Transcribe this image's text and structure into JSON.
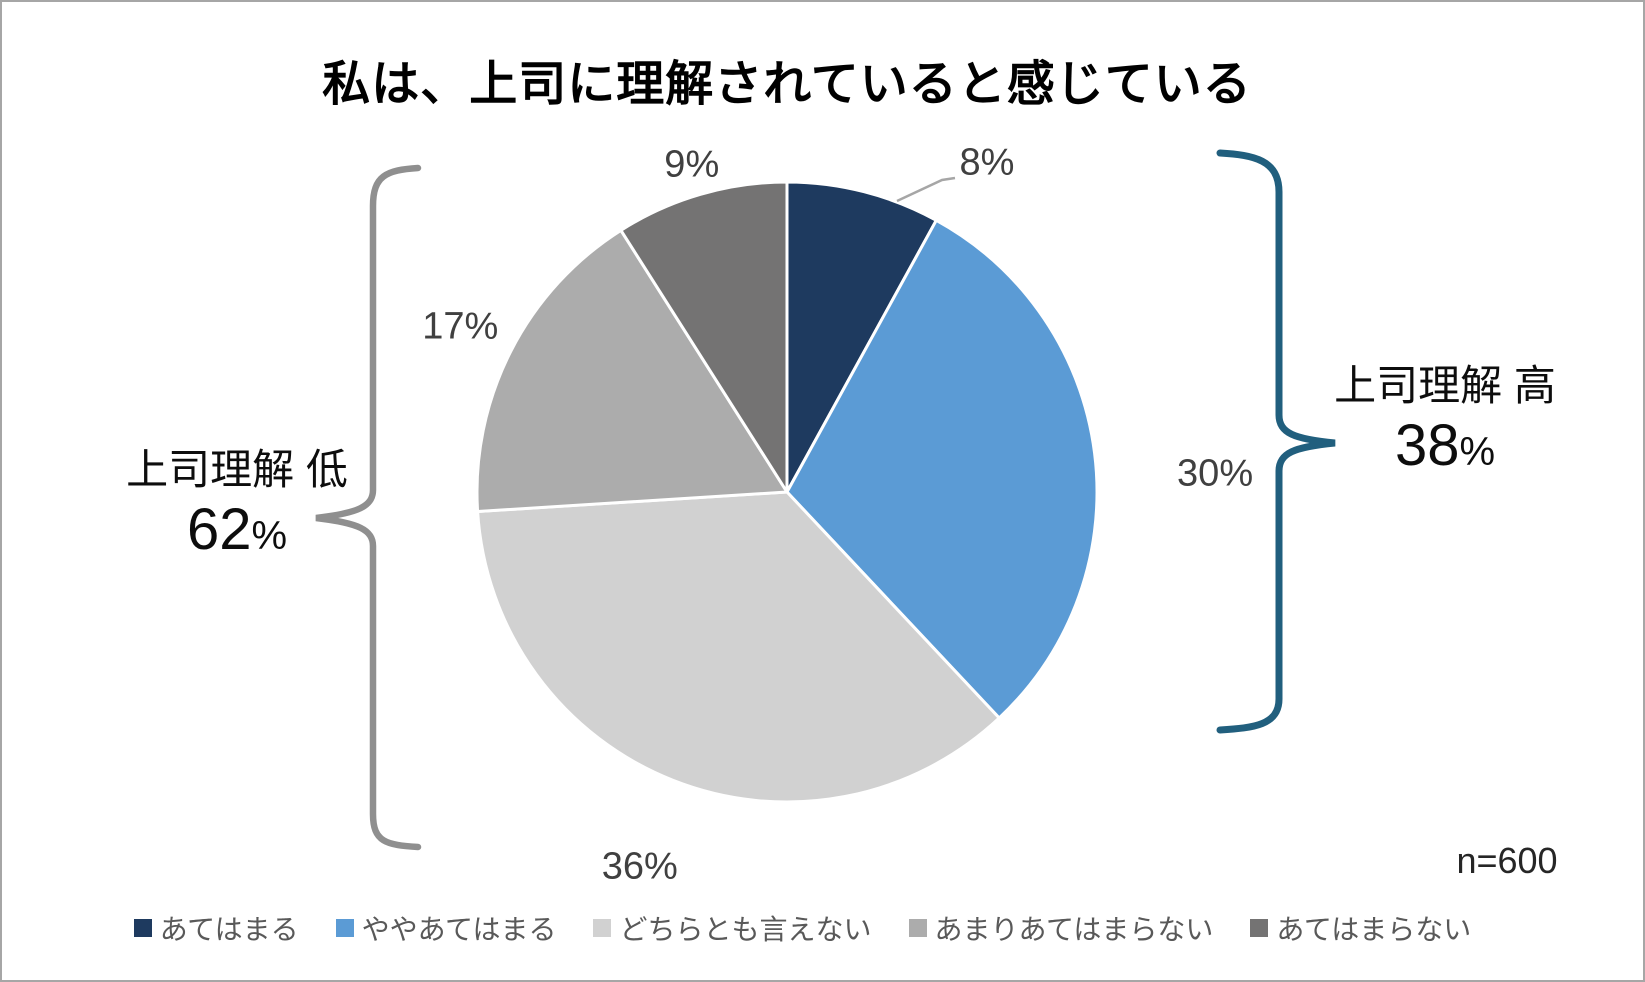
{
  "chart_data": {
    "type": "pie",
    "title": "私は、上司に理解されていると感じている",
    "categories": [
      "あてはまる",
      "ややあてはまる",
      "どちらとも言えない",
      "あまりあてはまらない",
      "あてはまらない"
    ],
    "values": [
      8,
      30,
      36,
      17,
      9
    ],
    "labels": [
      "8%",
      "30%",
      "36%",
      "17%",
      "9%"
    ],
    "colors": [
      "#1E3A5F",
      "#5B9BD5",
      "#D1D1D1",
      "#ACACAC",
      "#747373"
    ],
    "start_angle_deg": 0,
    "direction": "clockwise",
    "legend_position": "bottom",
    "grid": false,
    "sample_size": "n=600",
    "leader_line_color": "#A6A6A6",
    "annotations": [
      {
        "label": "上司理解 高",
        "value": "38",
        "unit": "%",
        "side": "right",
        "color": "#215F7E",
        "covers": [
          "あてはまる",
          "ややあてはまる"
        ]
      },
      {
        "label": "上司理解 低",
        "value": "62",
        "unit": "%",
        "side": "left",
        "color": "#8F8F8F",
        "covers": [
          "どちらとも言えない",
          "あまりあてはまらない",
          "あてはまらない"
        ]
      }
    ]
  }
}
